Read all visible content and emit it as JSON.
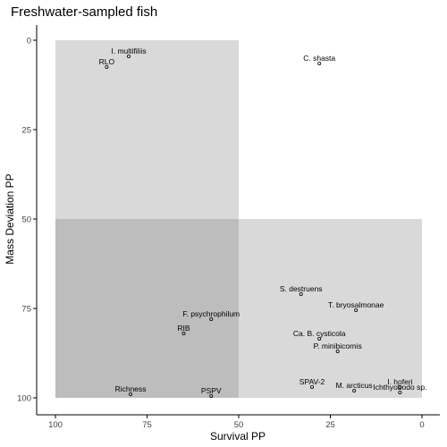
{
  "chart_data": {
    "type": "scatter",
    "title": "Freshwater-sampled fish",
    "xlabel": "Survival PP",
    "ylabel": "Mass Deviation PP",
    "xlim": [
      100,
      0
    ],
    "ylim": [
      0,
      100
    ],
    "x_reversed": true,
    "y_reversed": true,
    "xticks": [
      100,
      75,
      50,
      25,
      0
    ],
    "yticks": [
      0,
      25,
      50,
      75,
      100
    ],
    "grid": false,
    "regions": [
      {
        "x": [
          100,
          50
        ],
        "y": [
          0,
          50
        ],
        "color": "#d9d9d9"
      },
      {
        "x": [
          50,
          0
        ],
        "y": [
          50,
          100
        ],
        "color": "#d9d9d9"
      },
      {
        "x": [
          100,
          50
        ],
        "y": [
          50,
          100
        ],
        "color": "#bdbdbd"
      }
    ],
    "points": [
      {
        "label": "I. multifiliis",
        "x": 80,
        "y": 4.5
      },
      {
        "label": "RLO",
        "x": 86,
        "y": 7.5
      },
      {
        "label": "C. shasta",
        "x": 28,
        "y": 6.5
      },
      {
        "label": "S. destruens",
        "x": 33,
        "y": 71
      },
      {
        "label": "T. bryosalmonae",
        "x": 18,
        "y": 75.5
      },
      {
        "label": "F. psychrophilum",
        "x": 57.5,
        "y": 78
      },
      {
        "label": "RIB",
        "x": 65,
        "y": 82
      },
      {
        "label": "Ca. B. cysticola",
        "x": 28,
        "y": 83.5
      },
      {
        "label": "P. minibicornis",
        "x": 23,
        "y": 87
      },
      {
        "label": "SPAV-2",
        "x": 30,
        "y": 97
      },
      {
        "label": "M. arcticus",
        "x": 18.5,
        "y": 98
      },
      {
        "label": "I. hoferi",
        "x": 6,
        "y": 97
      },
      {
        "label": "Ichthyobodo sp.",
        "x": 6,
        "y": 98.5
      },
      {
        "label": "Richness",
        "x": 79.5,
        "y": 99
      },
      {
        "label": "PSPV",
        "x": 57.5,
        "y": 99.5
      }
    ]
  }
}
